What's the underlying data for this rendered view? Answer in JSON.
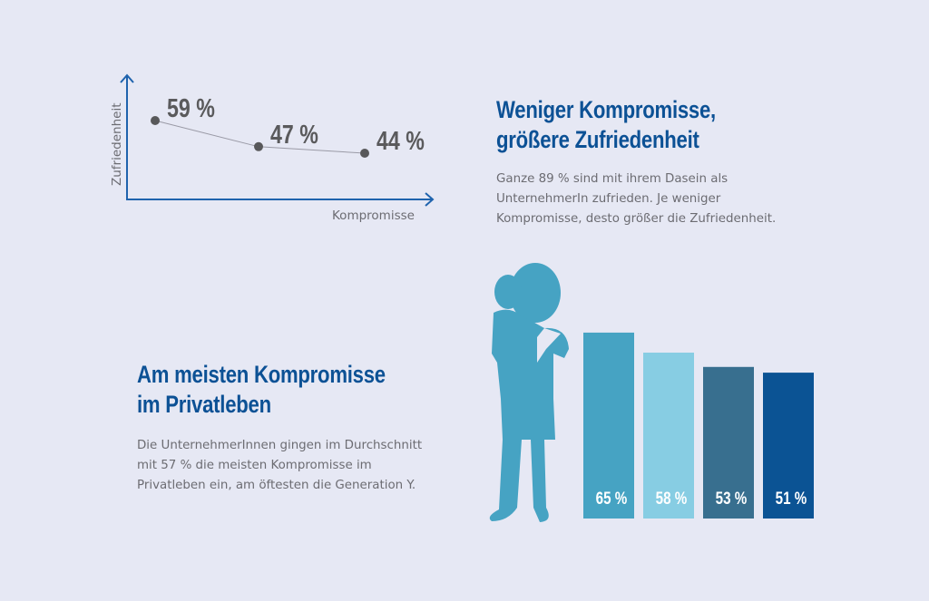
{
  "section1": {
    "heading_line1": "Weniger Kompromisse,",
    "heading_line2": "größere Zufriedenheit",
    "text_line1": "Ganze 89 % sind mit ihrem Dasein als",
    "text_line2": "UnternehmerIn zufrieden. Je weniger",
    "text_line3": "Kompromisse, desto größer die Zufriedenheit."
  },
  "section2": {
    "heading_line1": "Am meisten Kompromisse",
    "heading_line2": "im Privatleben",
    "text_line1": "Die UnternehmerInnen gingen im Durchschnitt",
    "text_line2": "mit 57 % die meisten Kompromisse im",
    "text_line3": "Privatleben ein, am öftesten die Generation Y."
  },
  "colors": {
    "background": "#e6e8f4",
    "heading": "#0c5195",
    "axis": "#1f63ad",
    "silhouette": "#46a3c3"
  },
  "chart_data": [
    {
      "type": "line",
      "xlabel": "Kompromisse",
      "ylabel": "Zufriedenheit",
      "values": [
        59,
        47,
        44
      ],
      "labels": [
        "59 %",
        "47 %",
        "44 %"
      ],
      "grid": false
    },
    {
      "type": "bar",
      "values": [
        65,
        58,
        53,
        51
      ],
      "labels": [
        "65 %",
        "58 %",
        "53 %",
        "51 %"
      ],
      "colors": [
        "#46a3c3",
        "#87cde3",
        "#386f8f",
        "#0b5394"
      ],
      "ylim": [
        0,
        65
      ]
    }
  ]
}
